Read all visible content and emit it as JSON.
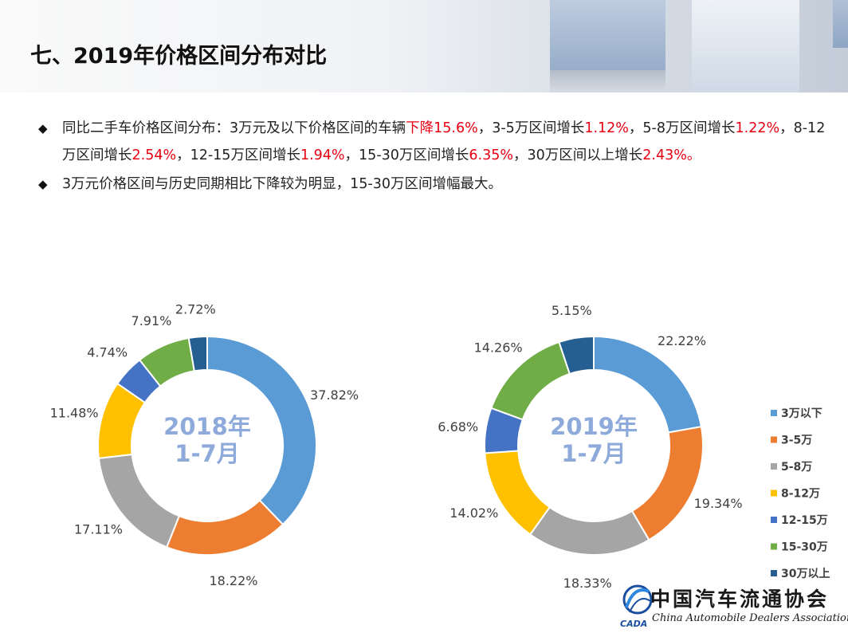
{
  "header": {
    "title": "七、2019年价格区间分布对比"
  },
  "bullets": [
    {
      "segments": [
        {
          "text": "同比二手车价格区间分布：3万元及以下价格区间的车辆",
          "highlight": false
        },
        {
          "text": "下降15.6%",
          "highlight": true
        },
        {
          "text": "，3-5万区间增长",
          "highlight": false
        },
        {
          "text": "1.12%",
          "highlight": true
        },
        {
          "text": "，5-8万区间增长",
          "highlight": false
        },
        {
          "text": "1.22%",
          "highlight": true
        },
        {
          "text": "，8-12万区间增长",
          "highlight": false
        },
        {
          "text": "2.54%",
          "highlight": true
        },
        {
          "text": "，12-15万区间增长",
          "highlight": false
        },
        {
          "text": "1.94%",
          "highlight": true
        },
        {
          "text": "，15-30万区间增长",
          "highlight": false
        },
        {
          "text": "6.35%",
          "highlight": true
        },
        {
          "text": "，30万区间以上增长",
          "highlight": false
        },
        {
          "text": "2.43%。",
          "highlight": true
        }
      ]
    },
    {
      "segments": [
        {
          "text": "3万元价格区间与历史同期相比下降较为明显，15-30万区间增幅最大。",
          "highlight": false
        }
      ]
    }
  ],
  "colors": {
    "highlight": "#e60012",
    "center_label": "#8eaadb",
    "series": [
      "#5b9bd5",
      "#ed7d31",
      "#a5a5a5",
      "#ffc000",
      "#4472c4",
      "#70ad47",
      "#255e91"
    ]
  },
  "chart_data": [
    {
      "type": "donut",
      "center_label": [
        "2018年",
        "1-7月"
      ],
      "categories": [
        "3万以下",
        "3-5万",
        "5-8万",
        "8-12万",
        "12-15万",
        "15-30万",
        "30万以上"
      ],
      "values": [
        37.82,
        18.22,
        17.11,
        11.48,
        4.74,
        7.91,
        2.72
      ],
      "labels": [
        "37.82%",
        "18.22%",
        "17.11%",
        "11.48%",
        "4.74%",
        "7.91%",
        "2.72%"
      ]
    },
    {
      "type": "donut",
      "center_label": [
        "2019年",
        "1-7月"
      ],
      "categories": [
        "3万以下",
        "3-5万",
        "5-8万",
        "8-12万",
        "12-15万",
        "15-30万",
        "30万以上"
      ],
      "values": [
        22.22,
        19.34,
        18.33,
        14.02,
        6.68,
        14.26,
        5.15
      ],
      "labels": [
        "22.22%",
        "19.34%",
        "18.33%",
        "14.02%",
        "6.68%",
        "14.26%",
        "5.15%"
      ],
      "legend": "right"
    }
  ],
  "legend": [
    "3万以下",
    "3-5万",
    "5-8万",
    "8-12万",
    "12-15万",
    "15-30万",
    "30万以上"
  ],
  "logo": {
    "name_cn": "中国汽车流通协会",
    "name_en": "China Automobile Dealers Association",
    "abbr": "CADA"
  }
}
